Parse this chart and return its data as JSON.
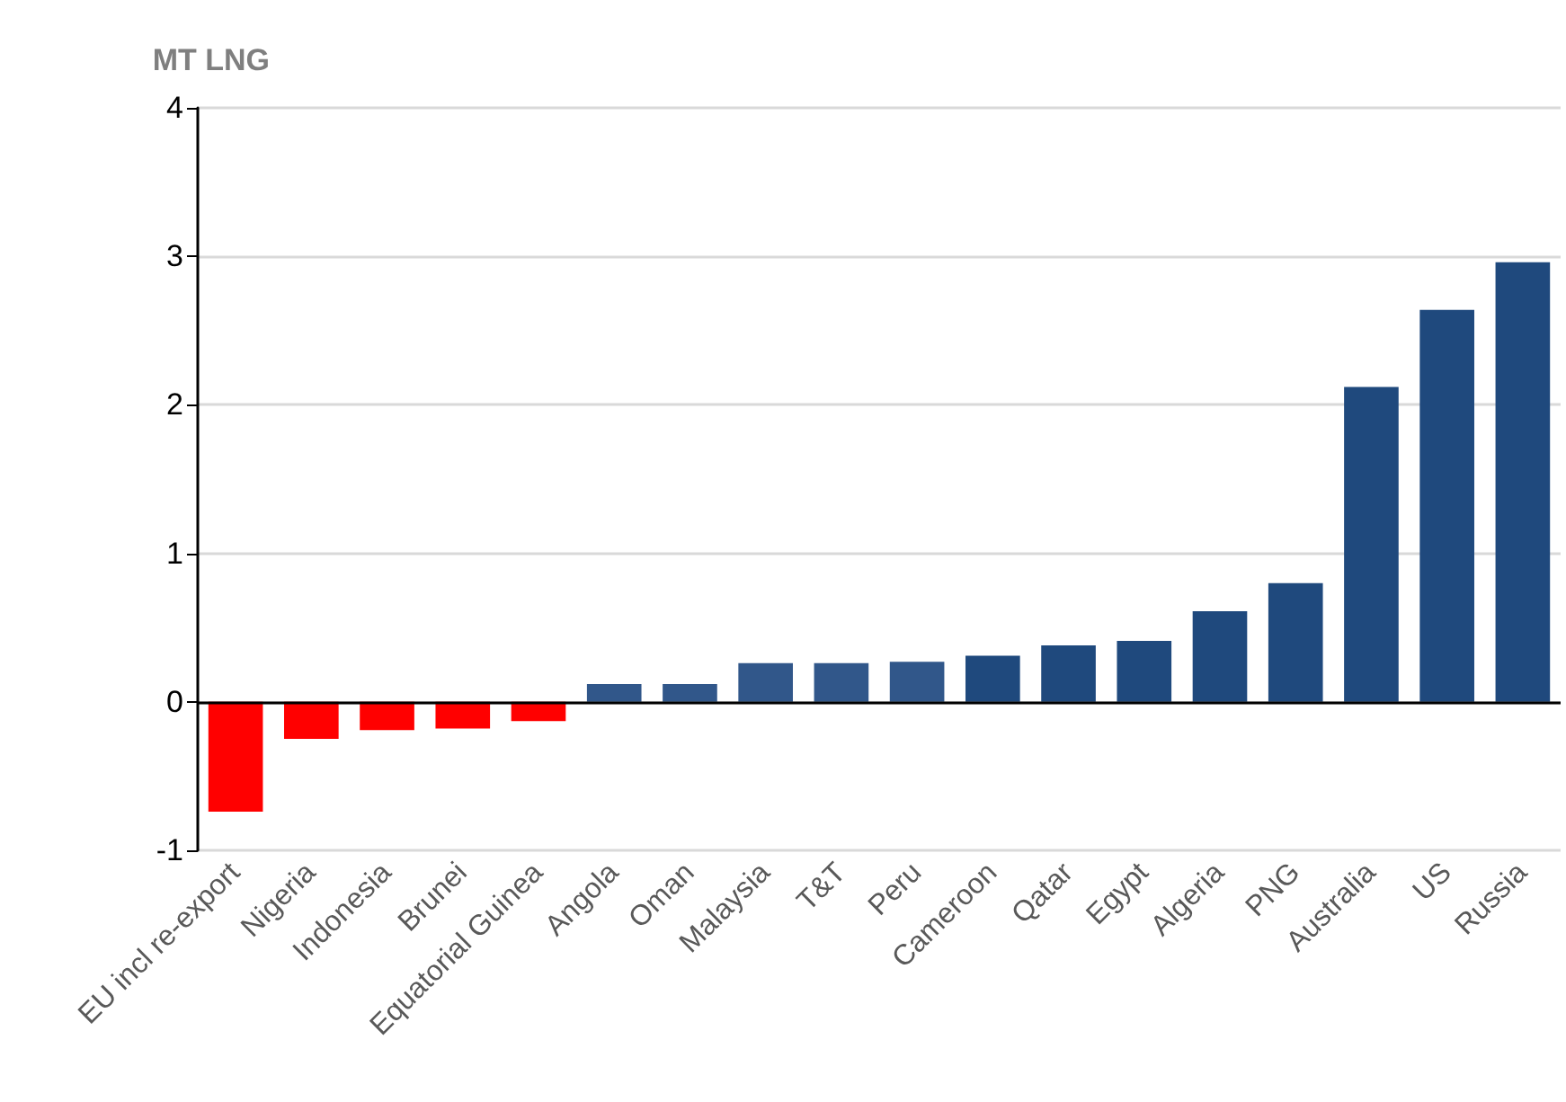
{
  "chart_data": {
    "type": "bar",
    "ylabel": "MT LNG",
    "categories": [
      "EU incl re-export",
      "Nigeria",
      "Indonesia",
      "Brunei",
      "Equatorial Guinea",
      "Angola",
      "Oman",
      "Malaysia",
      "T&T",
      "Peru",
      "Cameroon",
      "Qatar",
      "Egypt",
      "Algeria",
      "PNG",
      "Australia",
      "US",
      "Russia"
    ],
    "values": [
      -0.74,
      -0.25,
      -0.19,
      -0.18,
      -0.13,
      0.12,
      0.12,
      0.26,
      0.26,
      0.27,
      0.31,
      0.38,
      0.41,
      0.61,
      0.8,
      2.12,
      2.64,
      2.96
    ],
    "colors": [
      "#ff0000",
      "#ff0000",
      "#ff0000",
      "#ff0000",
      "#ff0000",
      "#31578a",
      "#31578a",
      "#31578a",
      "#31578a",
      "#31578a",
      "#1f497d",
      "#1f497d",
      "#1f497d",
      "#1f497d",
      "#1f497d",
      "#1f497d",
      "#1f497d",
      "#1f497d"
    ],
    "ylim": [
      -1,
      4
    ],
    "yticks": [
      -1,
      0,
      1,
      2,
      3,
      4
    ],
    "grid": "y"
  }
}
